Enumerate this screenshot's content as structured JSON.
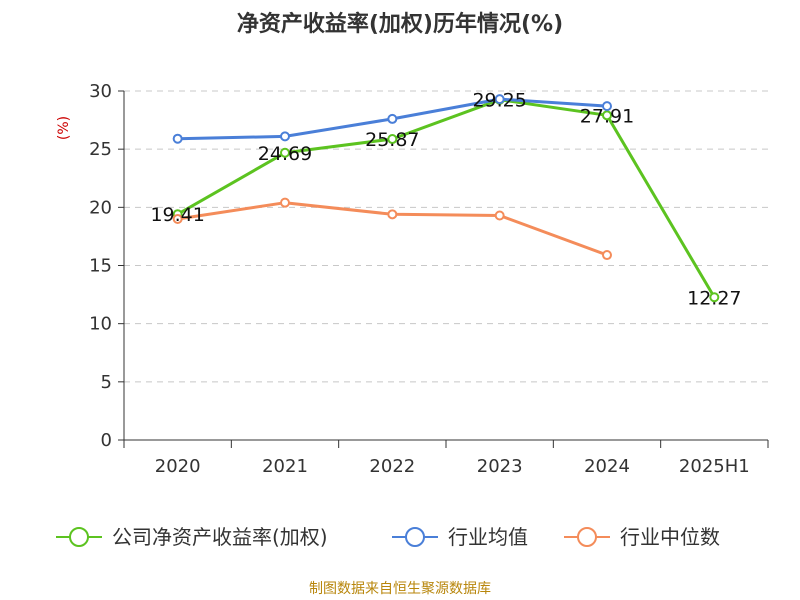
{
  "chart_data": {
    "type": "line",
    "title": "净资产收益率(加权)历年情况(%)",
    "ylabel": "(%)",
    "xlabel": "",
    "categories": [
      "2020",
      "2021",
      "2022",
      "2023",
      "2024",
      "2025H1"
    ],
    "ylim": [
      0,
      30
    ],
    "yticks": [
      0,
      5,
      10,
      15,
      20,
      25,
      30
    ],
    "grid": "horizontal-dashed",
    "legend_position": "bottom",
    "series": [
      {
        "name": "公司净资产收益率(加权)",
        "color": "#5cc320",
        "values": [
          19.41,
          24.69,
          25.87,
          29.25,
          27.91,
          12.27
        ],
        "labels": [
          "19.41",
          "24.69",
          "25.87",
          "29.25",
          "27.91",
          "12.27"
        ]
      },
      {
        "name": "行业均值",
        "color": "#4a7fd8",
        "values": [
          25.9,
          26.1,
          27.6,
          29.3,
          28.7,
          null
        ]
      },
      {
        "name": "行业中位数",
        "color": "#f48c5a",
        "values": [
          19.0,
          20.4,
          19.4,
          19.3,
          15.9,
          null
        ]
      }
    ],
    "source": "制图数据来自恒生聚源数据库"
  }
}
